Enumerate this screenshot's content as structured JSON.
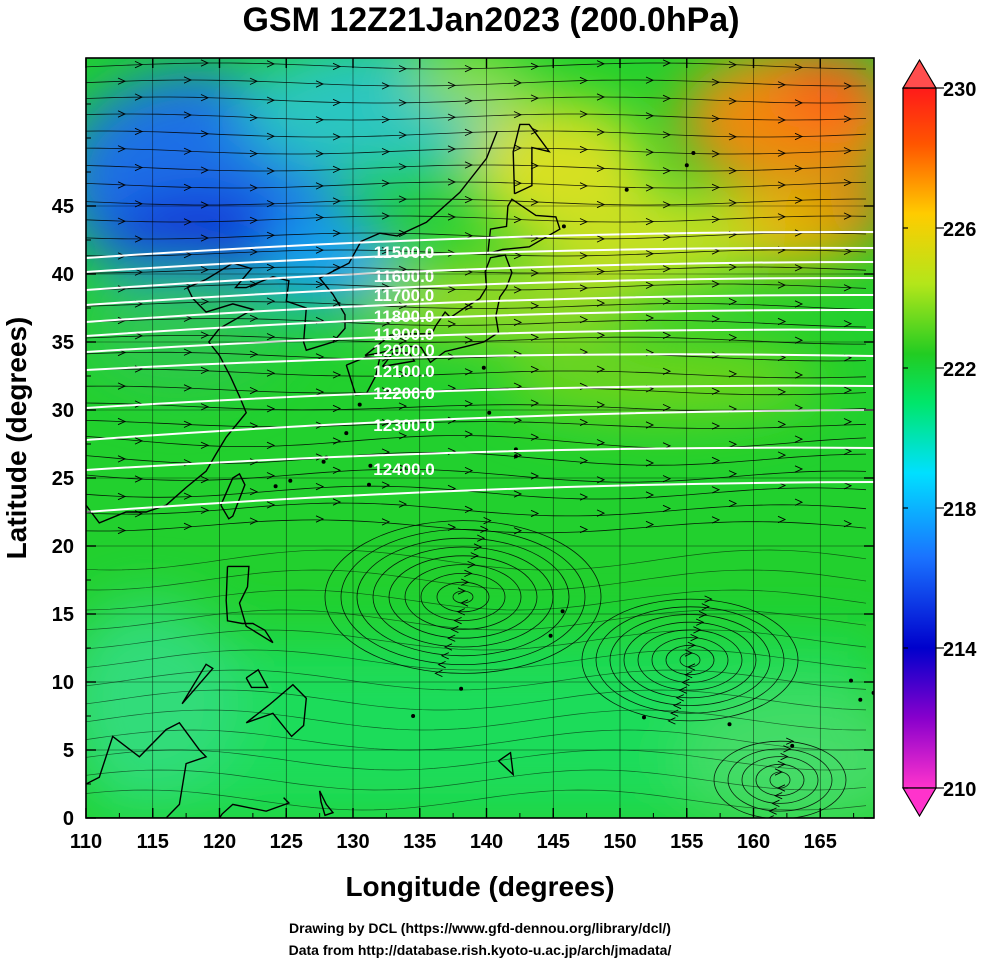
{
  "title": "GSM 12Z21Jan2023 (200.0hPa)",
  "xlabel": "Longitude (degrees)",
  "ylabel": "Latitude  (degrees)",
  "footer": {
    "line1": "Drawing by DCL (https://www.gfd-dennou.org/library/dcl/)",
    "line2": "Data from http://database.rish.kyoto-u.ac.jp/arch/jmadata/"
  },
  "x_ticks": [
    "110",
    "115",
    "120",
    "125",
    "130",
    "135",
    "140",
    "145",
    "150",
    "155",
    "160",
    "165"
  ],
  "y_ticks": [
    "0",
    "5",
    "10",
    "15",
    "20",
    "25",
    "30",
    "35",
    "40",
    "45"
  ],
  "contour_labels": [
    "11500.0",
    "11600.0",
    "11700.0",
    "11800.0",
    "11900.0",
    "12000.0",
    "12100.0",
    "12200.0",
    "12300.0",
    "12400.0"
  ],
  "colorbar": {
    "ticks": [
      "210",
      "214",
      "218",
      "222",
      "226",
      "230"
    ],
    "colors": [
      "#ff33cc",
      "#8800cc",
      "#0000cc",
      "#1a73ff",
      "#00e0ff",
      "#00e66b",
      "#22cc22",
      "#b3e61a",
      "#ffcc00",
      "#ff5500",
      "#ff1a1a"
    ]
  }
}
